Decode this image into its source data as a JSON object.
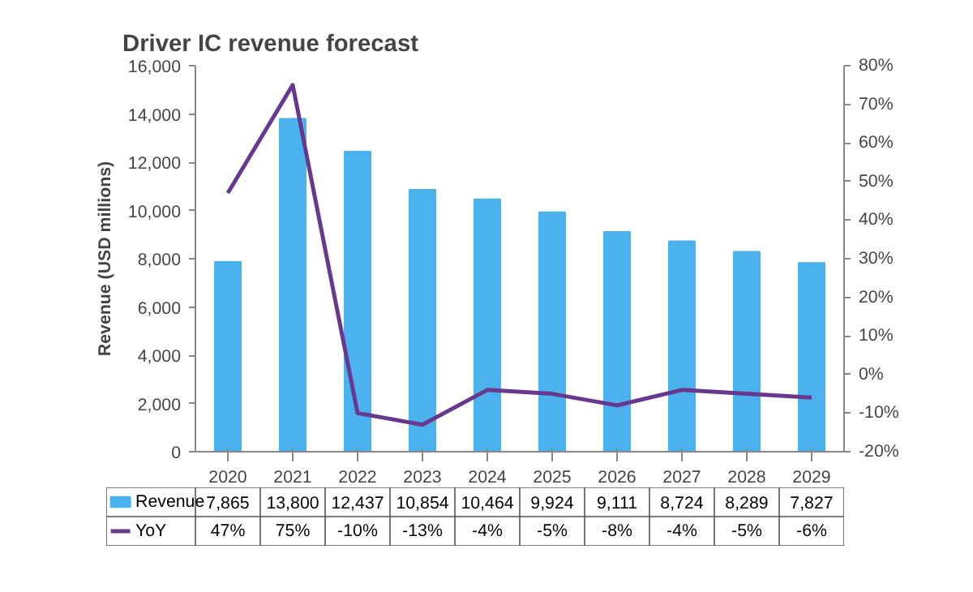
{
  "chart_data": {
    "type": "bar",
    "title": "Driver IC revenue forecast",
    "ylabel": "Revenue (USD millions)",
    "categories": [
      "2020",
      "2021",
      "2022",
      "2023",
      "2024",
      "2025",
      "2026",
      "2027",
      "2028",
      "2029"
    ],
    "series": [
      {
        "name": "Revenue",
        "color": "#4cb2ee",
        "values": [
          7865,
          13800,
          12437,
          10854,
          10464,
          9924,
          9111,
          8724,
          8289,
          7827
        ],
        "value_labels": [
          "7,865",
          "13,800",
          "12,437",
          "10,854",
          "10,464",
          "9,924",
          "9,111",
          "8,724",
          "8,289",
          "7,827"
        ]
      },
      {
        "name": "YoY",
        "type": "line",
        "axis": "y2",
        "color": "#68388f",
        "values": [
          47,
          75,
          -10,
          -13,
          -4,
          -5,
          -8,
          -4,
          -5,
          -6
        ],
        "value_labels": [
          "47%",
          "75%",
          "-10%",
          "-13%",
          "-4%",
          "-5%",
          "-8%",
          "-4%",
          "-5%",
          "-6%"
        ]
      }
    ],
    "ylim": [
      0,
      16000
    ],
    "yticks": [
      {
        "value": 0,
        "label": "0"
      },
      {
        "value": 2000,
        "label": "2,000"
      },
      {
        "value": 4000,
        "label": "4,000"
      },
      {
        "value": 6000,
        "label": "6,000"
      },
      {
        "value": 8000,
        "label": "8,000"
      },
      {
        "value": 10000,
        "label": "10,000"
      },
      {
        "value": 12000,
        "label": "12,000"
      },
      {
        "value": 14000,
        "label": "14,000"
      },
      {
        "value": 16000,
        "label": "16,000"
      }
    ],
    "y2lim": [
      -20,
      80
    ],
    "y2ticks": [
      {
        "value": -20,
        "label": "-20%"
      },
      {
        "value": -10,
        "label": "-10%"
      },
      {
        "value": 0,
        "label": "0%"
      },
      {
        "value": 10,
        "label": "10%"
      },
      {
        "value": 20,
        "label": "20%"
      },
      {
        "value": 30,
        "label": "30%"
      },
      {
        "value": 40,
        "label": "40%"
      },
      {
        "value": 50,
        "label": "50%"
      },
      {
        "value": 60,
        "label": "60%"
      },
      {
        "value": 70,
        "label": "70%"
      },
      {
        "value": 80,
        "label": "80%"
      }
    ],
    "legend": "bottom",
    "grid": false,
    "marker": "none",
    "line_style": "solid"
  }
}
